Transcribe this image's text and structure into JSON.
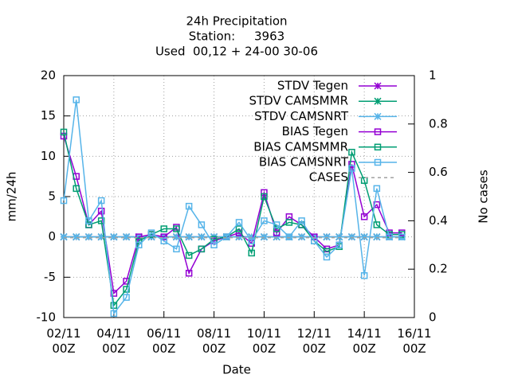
{
  "chart_data": {
    "type": "line",
    "title": [
      "24h Precipitation",
      "Station:     3963",
      "Used  00,12 + 24-00 30-06"
    ],
    "xlabel": "Date",
    "ylabel": "mm/24h",
    "y2label": "No cases",
    "x": [
      "02/11 00Z",
      "02/11 12Z",
      "03/11 00Z",
      "03/11 12Z",
      "04/11 00Z",
      "04/11 12Z",
      "05/11 00Z",
      "05/11 12Z",
      "06/11 00Z",
      "06/11 12Z",
      "07/11 00Z",
      "07/11 12Z",
      "08/11 00Z",
      "08/11 12Z",
      "09/11 00Z",
      "09/11 12Z",
      "10/11 00Z",
      "10/11 12Z",
      "11/11 00Z",
      "11/11 12Z",
      "12/11 00Z",
      "12/11 12Z",
      "13/11 00Z",
      "13/11 12Z",
      "14/11 00Z",
      "14/11 12Z",
      "15/11 00Z",
      "15/11 12Z"
    ],
    "xlim": [
      "02/11 00Z",
      "16/11 00Z"
    ],
    "xticks": [
      "02/11 00Z",
      "04/11 00Z",
      "06/11 00Z",
      "08/11 00Z",
      "10/11 00Z",
      "12/11 00Z",
      "14/11 00Z",
      "16/11 00Z"
    ],
    "ylim": [
      -10,
      20
    ],
    "yticks": [
      -10,
      -5,
      0,
      5,
      10,
      15,
      20
    ],
    "y2lim": [
      0,
      1
    ],
    "y2ticks": [
      0,
      0.2,
      0.4,
      0.6,
      0.8,
      1
    ],
    "grid": true,
    "legend": "top-right",
    "series": [
      {
        "name": "STDV Tegen",
        "color": "#9400d3",
        "marker": "star",
        "values": [
          0,
          0,
          0,
          0,
          0,
          0,
          0,
          0,
          0,
          0,
          0,
          0,
          0,
          0,
          0,
          0,
          0,
          0,
          0,
          0,
          0,
          0,
          0,
          0,
          0,
          0,
          0,
          0
        ]
      },
      {
        "name": "STDV CAMSMMR",
        "color": "#009e73",
        "marker": "star",
        "values": [
          0,
          0,
          0,
          0,
          0,
          0,
          0,
          0,
          0,
          0,
          0,
          0,
          0,
          0,
          0,
          0,
          0,
          0,
          0,
          0,
          0,
          0,
          0,
          0,
          0,
          0,
          0,
          0
        ]
      },
      {
        "name": "STDV CAMSNRT",
        "color": "#56b4e9",
        "marker": "star",
        "values": [
          0,
          0,
          0,
          0,
          0,
          0,
          0,
          0,
          0,
          0,
          0,
          0,
          0,
          0,
          0,
          0,
          0,
          0,
          0,
          0,
          0,
          0,
          0,
          0,
          0,
          0,
          0,
          0
        ]
      },
      {
        "name": "BIAS Tegen",
        "color": "#9400d3",
        "marker": "square",
        "values": [
          12.5,
          7.5,
          1.5,
          3.2,
          -7,
          -5.5,
          0,
          0.3,
          0,
          1.2,
          -4.5,
          -1.5,
          -0.5,
          0,
          0.5,
          -0.8,
          5.5,
          0.5,
          2.5,
          1.5,
          0,
          -1.5,
          -1,
          9,
          2.5,
          4,
          0.5,
          0.5
        ]
      },
      {
        "name": "BIAS CAMSMMR",
        "color": "#009e73",
        "marker": "square",
        "values": [
          13,
          6,
          1.5,
          2,
          -8.5,
          -6.5,
          -0.5,
          0.3,
          1,
          1,
          -2.3,
          -1.5,
          -0.3,
          0,
          1,
          -2,
          5,
          1,
          1.8,
          1.5,
          -0.5,
          -1.8,
          -1.2,
          10.5,
          7,
          1.5,
          0.3,
          0.3
        ]
      },
      {
        "name": "BIAS CAMSNRT",
        "color": "#56b4e9",
        "marker": "square",
        "values": [
          4.5,
          17,
          2,
          4.5,
          -9.5,
          -7.5,
          -1,
          0.5,
          -0.5,
          -1.5,
          3.8,
          1.5,
          -1,
          0,
          1.8,
          -0.5,
          2,
          1.5,
          0,
          2,
          -0.5,
          -2.5,
          -1,
          8.5,
          -4.8,
          6,
          0,
          0
        ]
      },
      {
        "name": "CASES",
        "color": "#a0a0a0",
        "marker": "none",
        "dash": true,
        "axis": "y2",
        "values": [
          0.33,
          0.33,
          0.33,
          0.33,
          0.33,
          0.33,
          0.33,
          0.33,
          0.33,
          0.33,
          0.33,
          0.33,
          0.33,
          0.33,
          0.33,
          0.33,
          0.33,
          0.33,
          0.33,
          0.33,
          0.33,
          0.33,
          0.33,
          0.33,
          0.33,
          0.33,
          0.33,
          0.33
        ]
      }
    ]
  }
}
